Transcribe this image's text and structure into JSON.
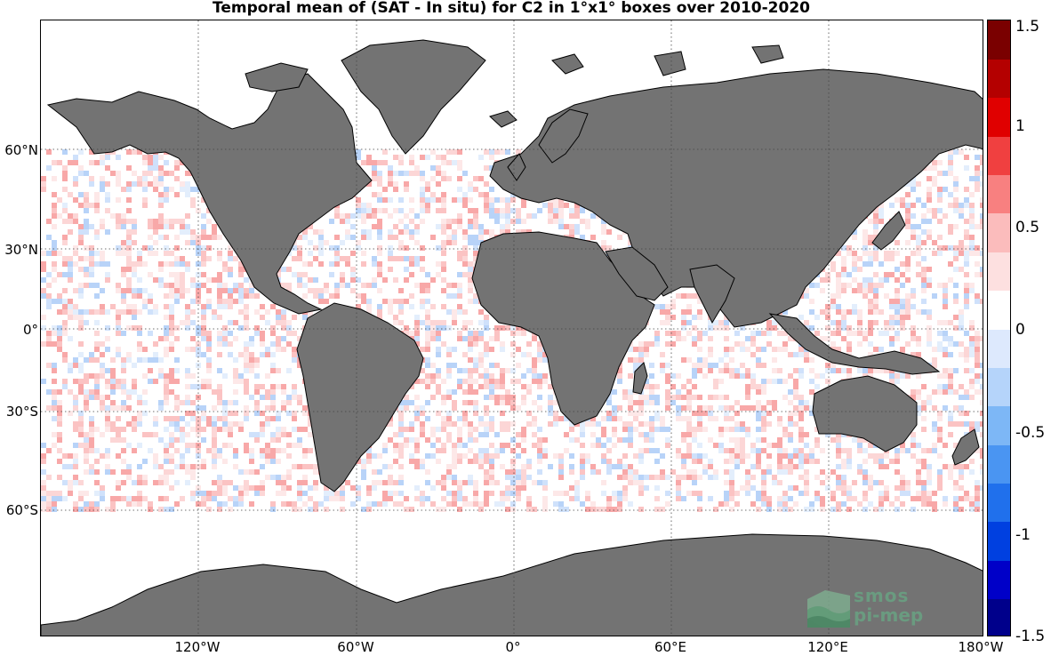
{
  "title": "Temporal mean of (SAT - In situ) for C2 in 1°x1° boxes over 2010-2020",
  "latitude_ticks": [
    "60°N",
    "30°N",
    "0°",
    "30°S",
    "60°S"
  ],
  "longitude_ticks": [
    "120°W",
    "60°W",
    "0°",
    "60°E",
    "120°E",
    "180°W"
  ],
  "colorbar": {
    "ticks": [
      "1.5",
      "1",
      "0.5",
      "0",
      "-0.5",
      "-1",
      "-1.5"
    ],
    "min": -1.5,
    "max": 1.5,
    "colors": [
      "#00008b",
      "#0000c8",
      "#0040e0",
      "#2070ec",
      "#4a95f2",
      "#7db7f6",
      "#b5d4fa",
      "#dde9fd",
      "#ffffff",
      "#fde0e0",
      "#fbbcbc",
      "#f88080",
      "#f04040",
      "#e00000",
      "#b40000",
      "#7a0000"
    ]
  },
  "land_color": "#737373",
  "logo": {
    "line1": "smos",
    "line2": "pi-mep"
  }
}
